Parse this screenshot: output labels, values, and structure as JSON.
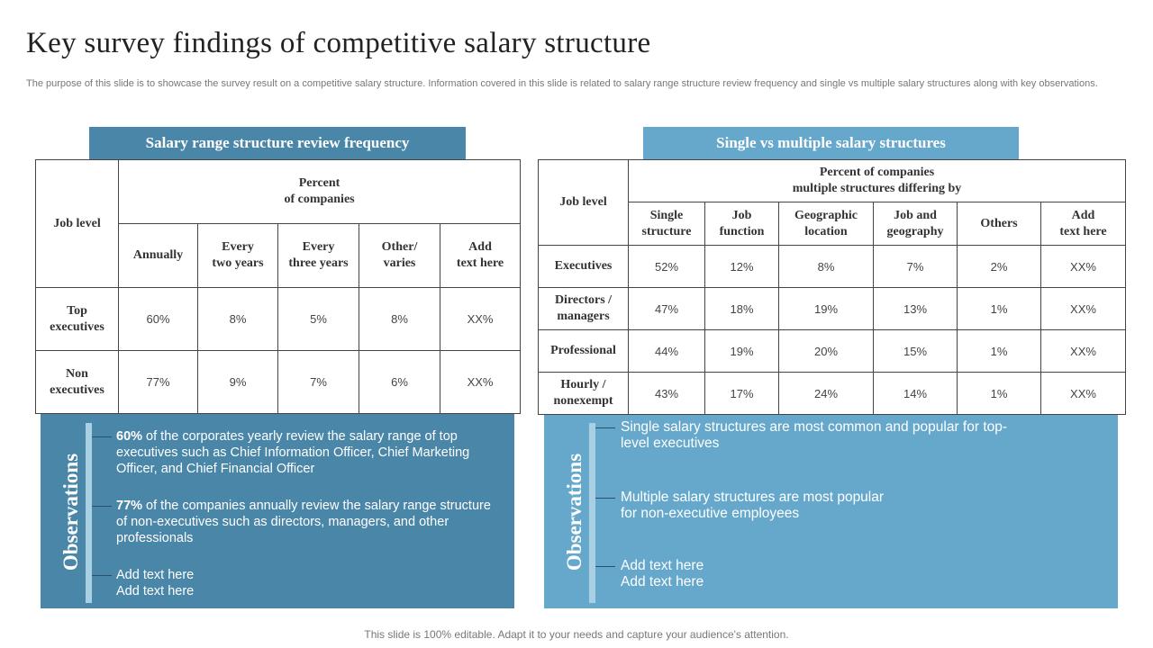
{
  "title": "Key survey findings of competitive salary structure",
  "description": "The purpose of this slide is to showcase the survey result on a competitive salary structure. Information covered in this slide is related to salary range structure review frequency and single vs multiple salary structures along with key observations.",
  "left": {
    "heading": "Salary range structure review frequency",
    "table": {
      "corner": "Job level",
      "group_header": "Percent\nof companies",
      "columns": [
        "Annually",
        "Every\ntwo years",
        "Every\nthree years",
        "Other/\nvaries",
        "Add\ntext here"
      ],
      "rows": [
        [
          "Top\nexecutives",
          "60%",
          "8%",
          "5%",
          "8%",
          "XX%"
        ],
        [
          "Non\nexecutives",
          "77%",
          "9%",
          "7%",
          "6%",
          "XX%"
        ]
      ]
    },
    "observations_label": "Observations",
    "observations": [
      {
        "bold": "60%",
        "text": " of the corporates yearly review the salary range of top executives such as Chief Information Officer, Chief Marketing Officer, and Chief Financial Officer"
      },
      {
        "bold": "77%",
        "text": " of the companies annually review the salary range structure of non-executives such as directors, managers, and other professionals"
      },
      {
        "text": "Add text here\nAdd text here"
      }
    ]
  },
  "right": {
    "heading": "Single vs multiple salary structures",
    "table": {
      "corner": "Job level",
      "group_header": "Percent of companies\nmultiple structures differing by",
      "columns": [
        "Single\nstructure",
        "Job\nfunction",
        "Geographic\nlocation",
        "Job and\ngeography",
        "Others",
        "Add\ntext here"
      ],
      "rows": [
        [
          "Executives",
          "52%",
          "12%",
          "8%",
          "7%",
          "2%",
          "XX%"
        ],
        [
          "Directors /\nmanagers",
          "47%",
          "18%",
          "19%",
          "13%",
          "1%",
          "XX%"
        ],
        [
          "Professional",
          "44%",
          "19%",
          "20%",
          "15%",
          "1%",
          "XX%"
        ],
        [
          "Hourly /\nnonexempt",
          "43%",
          "17%",
          "24%",
          "14%",
          "1%",
          "XX%"
        ]
      ]
    },
    "observations_label": "Observations",
    "observations": [
      {
        "text": "Single salary structures are most common and popular for top-\nlevel executives"
      },
      {
        "text": "Multiple salary structures  are most popular\nfor non-executive  employees"
      },
      {
        "text": "Add text here\nAdd text here"
      }
    ]
  },
  "footer": "This slide is 100% editable. Adapt it to your needs and capture your audience's attention."
}
